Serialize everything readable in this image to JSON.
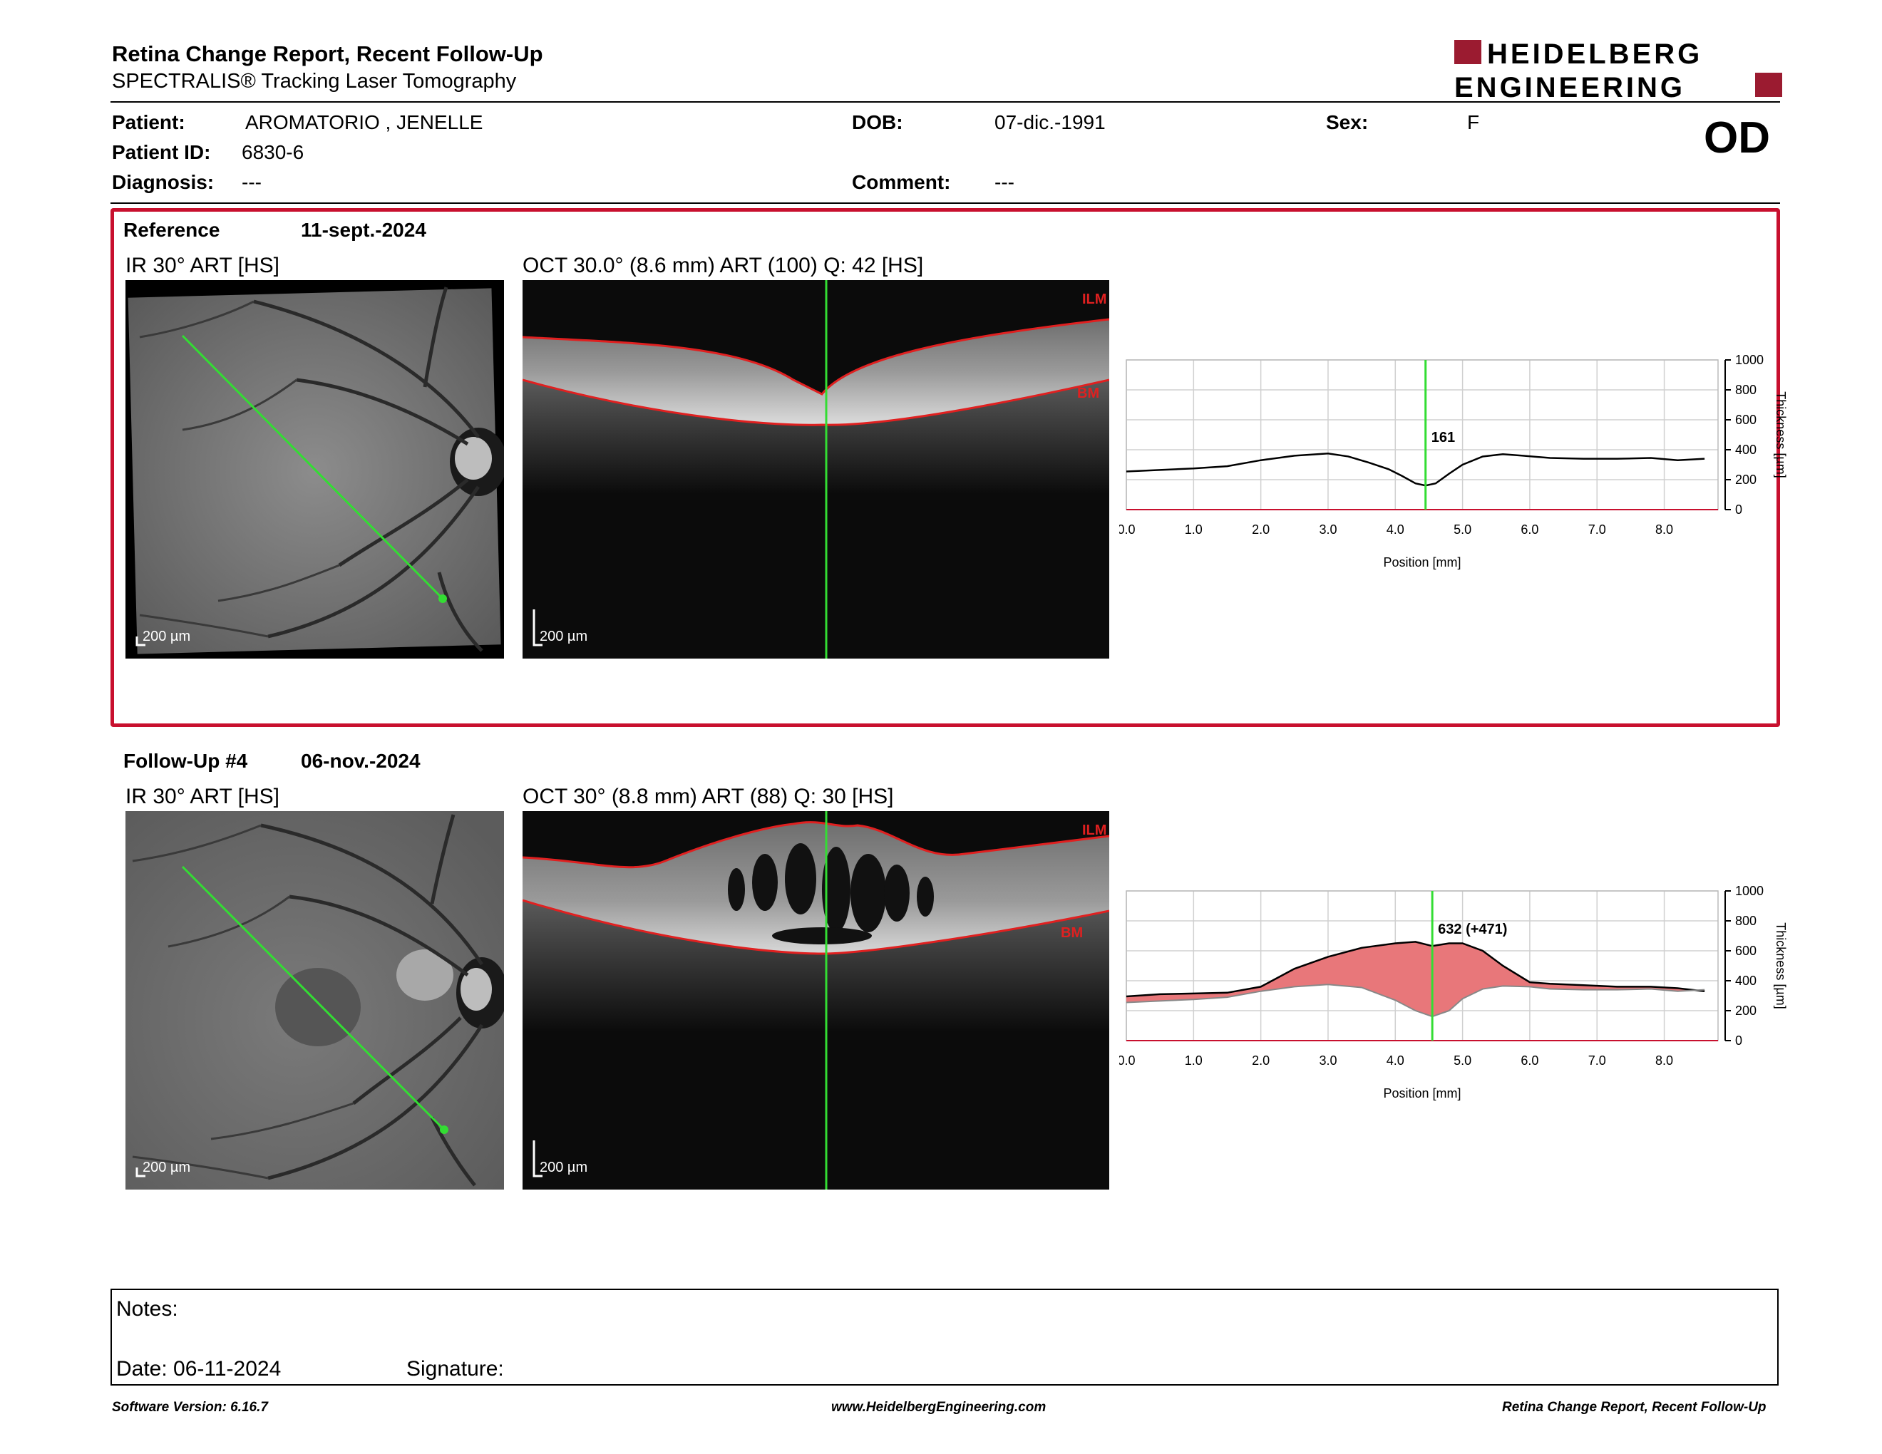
{
  "header": {
    "title": "Retina Change Report, Recent Follow-Up",
    "subtitle": "SPECTRALIS® Tracking Laser Tomography",
    "logo_line1": "HEIDELBERG",
    "logo_line2": "ENGINEERING",
    "brand_color": "#9b1b30"
  },
  "patient": {
    "patient_label": "Patient:",
    "patient_value": "AROMATORIO , JENELLE",
    "id_label": "Patient ID:",
    "id_value": "6830-6",
    "diagnosis_label": "Diagnosis:",
    "diagnosis_value": "---",
    "dob_label": "DOB:",
    "dob_value": "07-dic.-1991",
    "comment_label": "Comment:",
    "comment_value": "---",
    "sex_label": "Sex:",
    "sex_value": "F",
    "eye": "OD"
  },
  "reference": {
    "label": "Reference",
    "date": "11-sept.-2024",
    "ir_caption": "IR 30° ART [HS]",
    "oct_caption": "OCT 30.0° (8.6 mm) ART (100) Q: 42 [HS]",
    "scale_ir": "200 µm",
    "scale_oct": "200 µm",
    "ilm": "ILM",
    "bm": "BM"
  },
  "followup": {
    "label": "Follow-Up #4",
    "date": "06-nov.-2024",
    "ir_caption": "IR 30° ART [HS]",
    "oct_caption": "OCT 30° (8.8 mm) ART (88) Q: 30 [HS]",
    "scale_ir": "200 µm",
    "scale_oct": "200 µm",
    "ilm": "ILM",
    "bm": "BM"
  },
  "chart_data": [
    {
      "type": "line",
      "x": [
        0.0,
        0.5,
        1.0,
        1.5,
        2.0,
        2.5,
        3.0,
        3.3,
        3.6,
        3.9,
        4.1,
        4.3,
        4.45,
        4.6,
        4.8,
        5.0,
        5.3,
        5.6,
        5.9,
        6.3,
        6.8,
        7.3,
        7.8,
        8.2,
        8.6
      ],
      "y": [
        255,
        265,
        275,
        290,
        330,
        360,
        375,
        355,
        315,
        270,
        225,
        175,
        161,
        175,
        240,
        300,
        355,
        370,
        360,
        345,
        340,
        340,
        345,
        330,
        340
      ],
      "xlabel": "Position [mm]",
      "ylabel": "Thickness [µm]",
      "xlim": [
        0,
        8.8
      ],
      "ylim": [
        0,
        1000
      ],
      "xticks": [
        "0.0",
        "1.0",
        "2.0",
        "3.0",
        "4.0",
        "5.0",
        "6.0",
        "7.0",
        "8.0"
      ],
      "yticks": [
        "0",
        "200",
        "400",
        "600",
        "800",
        "1000"
      ],
      "marker_x": 4.45,
      "marker_label": "161",
      "grid": true
    },
    {
      "type": "area",
      "x": [
        0.0,
        0.5,
        1.0,
        1.5,
        2.0,
        2.5,
        3.0,
        3.5,
        4.0,
        4.3,
        4.55,
        4.8,
        5.0,
        5.3,
        5.6,
        6.0,
        6.3,
        6.8,
        7.3,
        7.8,
        8.2,
        8.6
      ],
      "series": [
        {
          "values": [
            295,
            310,
            315,
            320,
            360,
            480,
            560,
            620,
            650,
            660,
            632,
            650,
            650,
            600,
            500,
            390,
            380,
            370,
            360,
            360,
            350,
            330
          ]
        },
        {
          "values": [
            255,
            265,
            275,
            290,
            330,
            360,
            375,
            355,
            270,
            200,
            161,
            200,
            280,
            345,
            365,
            360,
            345,
            340,
            340,
            345,
            330,
            340
          ]
        }
      ],
      "xlabel": "Position [mm]",
      "ylabel": "Thickness [µm]",
      "xlim": [
        0,
        8.8
      ],
      "ylim": [
        0,
        1000
      ],
      "xticks": [
        "0.0",
        "1.0",
        "2.0",
        "3.0",
        "4.0",
        "5.0",
        "6.0",
        "7.0",
        "8.0"
      ],
      "yticks": [
        "0",
        "200",
        "400",
        "600",
        "800",
        "1000"
      ],
      "marker_x": 4.55,
      "marker_label": "632 (+471)",
      "fill_color": "#e8777a",
      "grid": true
    }
  ],
  "notes": {
    "notes_label": "Notes:",
    "date_label": "Date: 06-11-2024",
    "signature_label": "Signature:"
  },
  "footer": {
    "version": "Software Version: 6.16.7",
    "url": "www.HeidelbergEngineering.com",
    "report_name": "Retina Change Report, Recent Follow-Up"
  }
}
